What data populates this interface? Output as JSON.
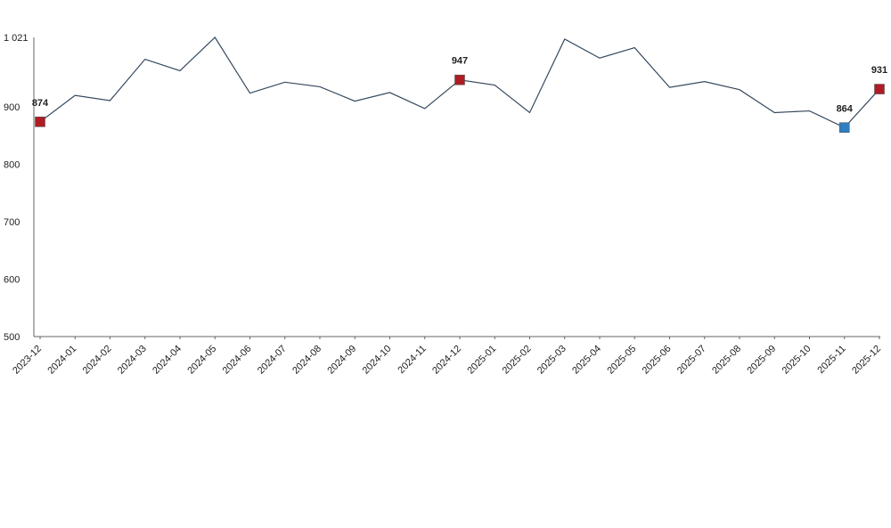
{
  "chart_data": {
    "type": "line",
    "x": [
      "2023-12",
      "2024-01",
      "2024-02",
      "2024-03",
      "2024-04",
      "2024-05",
      "2024-06",
      "2024-07",
      "2024-08",
      "2024-09",
      "2024-10",
      "2024-11",
      "2024-12",
      "2025-01",
      "2025-02",
      "2025-03",
      "2025-04",
      "2025-05",
      "2025-06",
      "2025-07",
      "2025-08",
      "2025-09",
      "2025-10",
      "2025-11",
      "2025-12"
    ],
    "series": [
      {
        "values": [
          874,
          920,
          911,
          983,
          963,
          1021,
          924,
          943,
          935,
          910,
          925,
          897,
          947,
          938,
          890,
          1018,
          985,
          1003,
          934,
          944,
          930,
          890,
          893,
          864,
          931
        ],
        "color": "#34495e"
      }
    ],
    "highlighted_points": [
      {
        "index": 0,
        "label": "874",
        "color": "#b01c23"
      },
      {
        "index": 12,
        "label": "947",
        "color": "#b01c23"
      },
      {
        "index": 23,
        "label": "864",
        "color": "#2f7fc1"
      },
      {
        "index": 24,
        "label": "931",
        "color": "#b01c23"
      }
    ],
    "y_ticks": [
      {
        "value": 1021,
        "label": "1 021"
      },
      {
        "value": 900,
        "label": "900"
      },
      {
        "value": 800,
        "label": "800"
      },
      {
        "value": 700,
        "label": "700"
      },
      {
        "value": 600,
        "label": "600"
      },
      {
        "value": 500,
        "label": "500"
      }
    ],
    "ylim": [
      500,
      1021
    ],
    "title": "",
    "xlabel": "",
    "ylabel": "",
    "grid": false,
    "legend": "none"
  }
}
